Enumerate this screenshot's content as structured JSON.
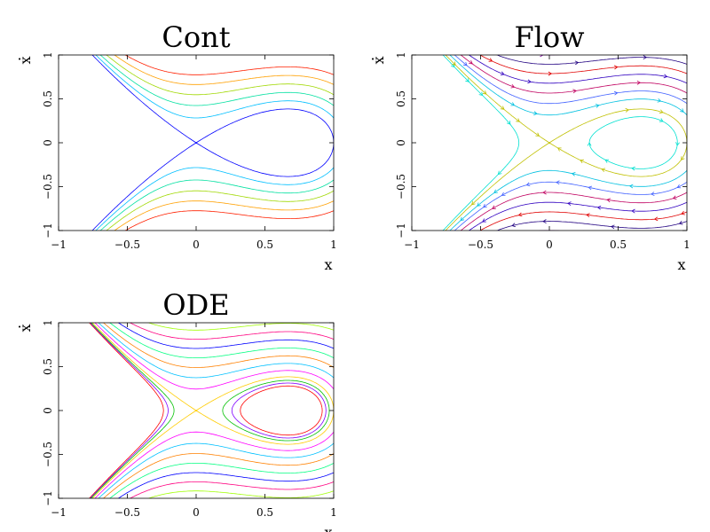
{
  "chart_data": [
    {
      "type": "line",
      "title": "Cont",
      "xlabel": "x",
      "ylabel": "x",
      "ylabel_dot": "·",
      "xlim": [
        -1,
        1
      ],
      "ylim": [
        -1,
        1
      ],
      "xticks": [
        -1,
        -0.5,
        0,
        0.5,
        1
      ],
      "xtick_labels": [
        "−1",
        "−0.5",
        "0",
        "0.5",
        "1"
      ],
      "yticks": [
        -1,
        -0.5,
        0,
        0.5,
        1
      ],
      "ytick_labels": [
        "−1",
        "−0.5",
        "0",
        "0.5",
        "1"
      ],
      "grid": false,
      "arrows": false,
      "levels": [
        0,
        0.04,
        0.09,
        0.15,
        0.22,
        0.3
      ],
      "colors": [
        "#0000ff",
        "#00bfff",
        "#00e0a0",
        "#a0d800",
        "#ffa000",
        "#ff2000"
      ]
    },
    {
      "type": "line",
      "title": "Flow",
      "xlabel": "x",
      "ylabel": "x",
      "ylabel_dot": "·",
      "xlim": [
        -1,
        1
      ],
      "ylim": [
        -1,
        1
      ],
      "xticks": [
        -1,
        -0.5,
        0,
        0.5,
        1
      ],
      "xtick_labels": [
        "−1",
        "−0.5",
        "0",
        "0.5",
        "1"
      ],
      "yticks": [
        -1,
        -0.5,
        0,
        0.5,
        1
      ],
      "ytick_labels": [
        "−1",
        "−0.5",
        "0",
        "0.5",
        "1"
      ],
      "grid": false,
      "arrows": true,
      "levels": [
        -0.03,
        0,
        0.05,
        0.1,
        0.16,
        0.23,
        0.31,
        0.4,
        0.5
      ],
      "colors": [
        "#00e0d0",
        "#c0c000",
        "#00c0e0",
        "#4060ff",
        "#c00060",
        "#3000c0",
        "#e00000",
        "#200080",
        "#8000a0"
      ]
    },
    {
      "type": "line",
      "title": "ODE",
      "xlabel": "x",
      "ylabel": "x",
      "ylabel_dot": "·",
      "xlim": [
        -1,
        1
      ],
      "ylim": [
        -1,
        1
      ],
      "xticks": [
        -1,
        -0.5,
        0,
        0.5,
        1
      ],
      "xtick_labels": [
        "−1",
        "−0.5",
        "0",
        "0.5",
        "1"
      ],
      "yticks": [
        -1,
        -0.5,
        0,
        0.5,
        1
      ],
      "ytick_labels": [
        "−1",
        "−0.5",
        "0",
        "0.5",
        "1"
      ],
      "grid": false,
      "arrows": false,
      "levels": [
        -0.035,
        -0.025,
        -0.015,
        0,
        0.03,
        0.07,
        0.12,
        0.18,
        0.25,
        0.33,
        0.42,
        0.52,
        0.64,
        0.78,
        0.95
      ],
      "colors": [
        "#ff0000",
        "#8000ff",
        "#00c000",
        "#ffcc00",
        "#ff00ff",
        "#00c0ff",
        "#ff8000",
        "#00ff80",
        "#0000ff",
        "#ff0080",
        "#a0ff00",
        "#0080ff",
        "#ff00c0",
        "#00ffff",
        "#ffff00"
      ]
    }
  ]
}
